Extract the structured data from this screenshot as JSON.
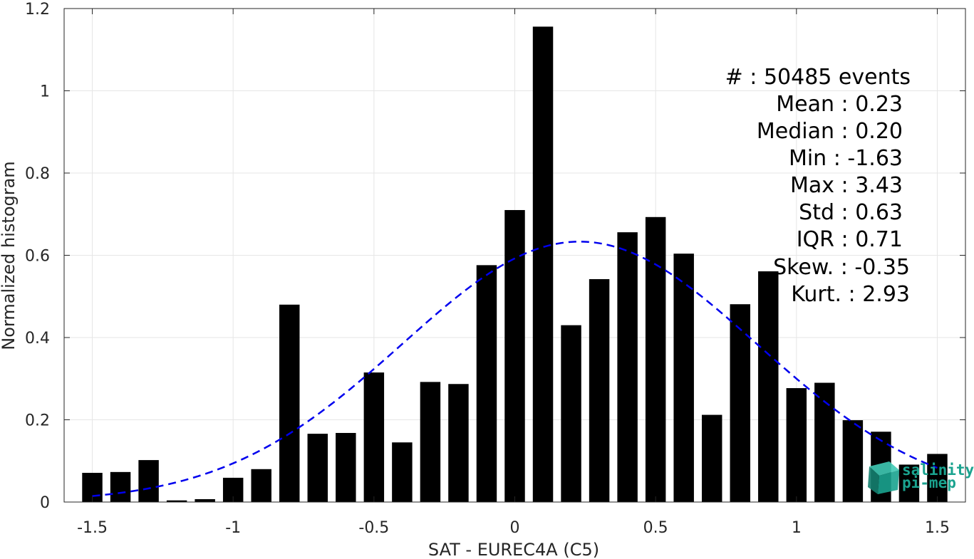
{
  "chart_data": {
    "type": "bar",
    "title": "",
    "xlabel": "SAT - EUREC4A (C5)",
    "ylabel": "Normalized histogram",
    "xlim": [
      -1.6,
      1.6
    ],
    "ylim": [
      0,
      1.2
    ],
    "xticks": [
      -1.5,
      -1,
      -0.5,
      0,
      0.5,
      1,
      1.5
    ],
    "xtick_labels": [
      "-1.5",
      "-1",
      "-0.5",
      "0",
      "0.5",
      "1",
      "1.5"
    ],
    "yticks": [
      0,
      0.2,
      0.4,
      0.6,
      0.8,
      1,
      1.2
    ],
    "ytick_labels": [
      "0",
      "0.2",
      "0.4",
      "0.6",
      "0.8",
      "1",
      "1.2"
    ],
    "grid": true,
    "bar_color": "#000000",
    "fit_color": "#0000ee",
    "bins": [
      {
        "x": -1.5,
        "value": 0.071
      },
      {
        "x": -1.4,
        "value": 0.073
      },
      {
        "x": -1.3,
        "value": 0.102
      },
      {
        "x": -1.2,
        "value": 0.004
      },
      {
        "x": -1.1,
        "value": 0.007
      },
      {
        "x": -1.0,
        "value": 0.059
      },
      {
        "x": -0.9,
        "value": 0.08
      },
      {
        "x": -0.8,
        "value": 0.48
      },
      {
        "x": -0.7,
        "value": 0.166
      },
      {
        "x": -0.6,
        "value": 0.168
      },
      {
        "x": -0.5,
        "value": 0.315
      },
      {
        "x": -0.4,
        "value": 0.145
      },
      {
        "x": -0.3,
        "value": 0.292
      },
      {
        "x": -0.2,
        "value": 0.287
      },
      {
        "x": -0.1,
        "value": 0.576
      },
      {
        "x": 0.0,
        "value": 0.71
      },
      {
        "x": 0.1,
        "value": 1.156
      },
      {
        "x": 0.2,
        "value": 0.43
      },
      {
        "x": 0.3,
        "value": 0.542
      },
      {
        "x": 0.4,
        "value": 0.656
      },
      {
        "x": 0.5,
        "value": 0.693
      },
      {
        "x": 0.6,
        "value": 0.604
      },
      {
        "x": 0.7,
        "value": 0.212
      },
      {
        "x": 0.8,
        "value": 0.481
      },
      {
        "x": 0.9,
        "value": 0.561
      },
      {
        "x": 1.0,
        "value": 0.277
      },
      {
        "x": 1.1,
        "value": 0.29
      },
      {
        "x": 1.2,
        "value": 0.199
      },
      {
        "x": 1.3,
        "value": 0.171
      },
      {
        "x": 1.4,
        "value": 0.091
      },
      {
        "x": 1.5,
        "value": 0.117
      }
    ],
    "fit": {
      "type": "gaussian",
      "style": "dashed",
      "mean": 0.23,
      "std": 0.63,
      "x_range": [
        -1.5,
        1.5
      ]
    }
  },
  "stats": [
    {
      "text": "#  : 50485 events"
    },
    {
      "text": "Mean : 0.23"
    },
    {
      "text": "Median : 0.20"
    },
    {
      "text": "Min : -1.63"
    },
    {
      "text": "Max : 3.43"
    },
    {
      "text": "Std : 0.63"
    },
    {
      "text": "IQR : 0.71"
    },
    {
      "text": "Skew. : -0.35"
    },
    {
      "text": "Kurt. : 2.93"
    }
  ],
  "logo": {
    "line1": "salinity",
    "line2": "pi-mep",
    "color": "#1aa38f"
  }
}
